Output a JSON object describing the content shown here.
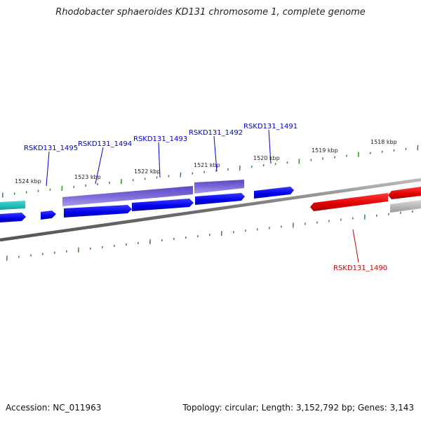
{
  "title": "Rhodobacter sphaeroides KD131 chromosome 1, complete genome",
  "footer": {
    "accession": "Accession: NC_011963",
    "summary": "Topology: circular; Length: 3,152,792 bp; Genes: 3,143"
  },
  "ruler": {
    "labels": [
      "1524 kbp",
      "1523 kbp",
      "1522 kbp",
      "1521 kbp",
      "1520 kbp",
      "1519 kbp",
      "1518 kbp"
    ],
    "tick_color": "#2e8b2e"
  },
  "genes": [
    {
      "label": "RSKD131_1495",
      "color": "#0000cc"
    },
    {
      "label": "RSKD131_1494",
      "color": "#0000cc"
    },
    {
      "label": "RSKD131_1493",
      "color": "#0000cc"
    },
    {
      "label": "RSKD131_1492",
      "color": "#0000cc"
    },
    {
      "label": "RSKD131_1491",
      "color": "#0000cc"
    },
    {
      "label": "RSKD131_1490",
      "color": "#cc0000"
    }
  ],
  "colors": {
    "cds_forward": "#0000ee",
    "cds_reverse": "#dd0000",
    "gene_purple": "#6a5acd",
    "backbone": "#777777",
    "cyan": "#20c0c0",
    "gray_feature": "#b0b0b0"
  }
}
